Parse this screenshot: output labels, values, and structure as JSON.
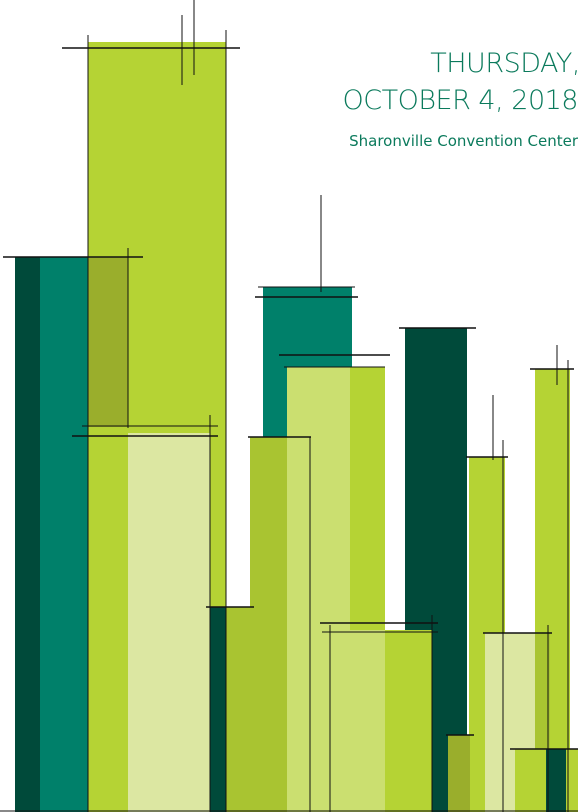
{
  "header": {
    "day": "THURSDAY,",
    "date": "OCTOBER 4, 2018",
    "venue": "Sharonville Convention Center"
  }
}
